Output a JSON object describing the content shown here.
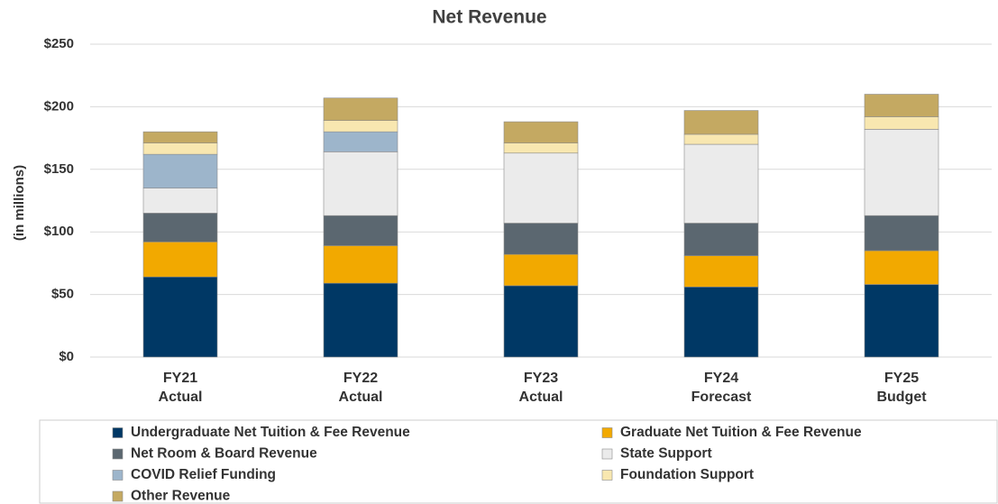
{
  "chart_data": {
    "type": "stacked_bar",
    "title": "Net Revenue",
    "y_label": "(in millions)",
    "categories": [
      "FY21\nActual",
      "FY22\nActual",
      "FY23\nActual",
      "FY24\nForecast",
      "FY25\nBudget"
    ],
    "series": [
      {
        "name": "Undergraduate Net Tuition & Fee Revenue",
        "color": "#003865",
        "values": [
          64,
          59,
          57,
          56,
          58
        ]
      },
      {
        "name": "Graduate Net Tuition & Fee Revenue",
        "color": "#f2a900",
        "values": [
          28,
          30,
          25,
          25,
          27
        ]
      },
      {
        "name": "Net Room & Board Revenue",
        "color": "#5b6770",
        "values": [
          23,
          24,
          25,
          26,
          28
        ]
      },
      {
        "name": "State Support",
        "color": "#ebebeb",
        "values": [
          20,
          51,
          56,
          63,
          69
        ]
      },
      {
        "name": "COVID Relief Funding",
        "color": "#9db5cb",
        "values": [
          27,
          16,
          0,
          0,
          0
        ]
      },
      {
        "name": "Foundation Support",
        "color": "#f8e7b0",
        "values": [
          9,
          9,
          8,
          8,
          10
        ]
      },
      {
        "name": "Other Revenue",
        "color": "#c4a962",
        "values": [
          9,
          18,
          17,
          19,
          18
        ]
      }
    ],
    "ylim": [
      0,
      250
    ],
    "yticks": [
      {
        "value": 0,
        "label": "$0"
      },
      {
        "value": 50,
        "label": "$50"
      },
      {
        "value": 100,
        "label": "$100"
      },
      {
        "value": 150,
        "label": "$150"
      },
      {
        "value": 200,
        "label": "$200"
      },
      {
        "value": 250,
        "label": "$250"
      }
    ],
    "grid": true,
    "legend": "bottom"
  }
}
